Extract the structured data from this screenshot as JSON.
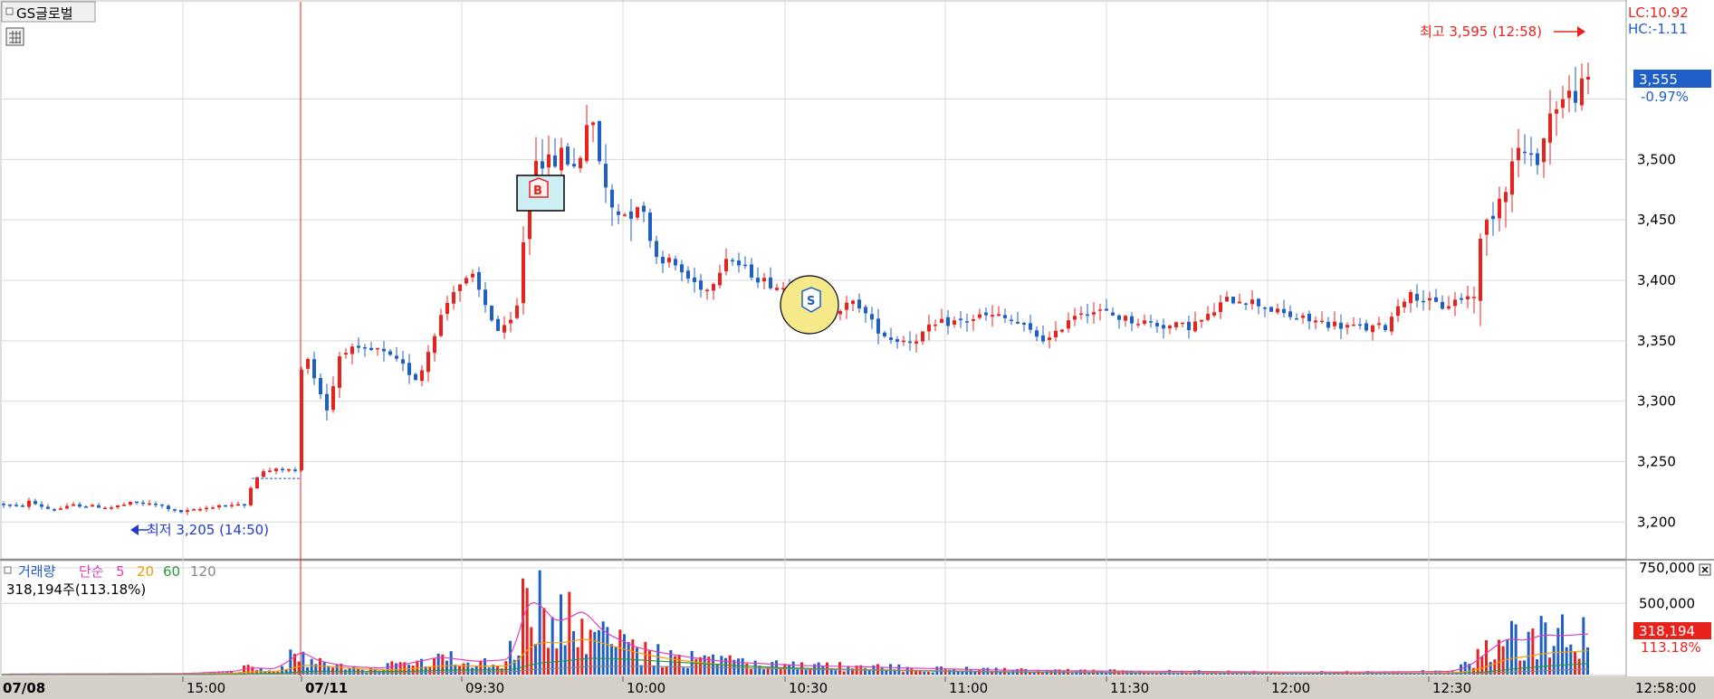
{
  "header": {
    "stock_tab": "GS글로벌",
    "lc_label": "LC:10.92",
    "hc_label": "HC:-1.11"
  },
  "price_panel": {
    "current_price": "3,555",
    "change_pct": "-0.97%",
    "high_annotation": "최고 3,595 (12:58)",
    "low_annotation": "최저 3,205 (14:50)",
    "buy_marker": "B",
    "sell_marker": "S"
  },
  "volume_panel": {
    "legend": {
      "volume": "거래량",
      "sma": "단순",
      "p5": "5",
      "p20": "20",
      "p60": "60",
      "p120": "120"
    },
    "summary": "318,194주(113.18%)",
    "current_volume": "318,194",
    "current_ratio": "113.18%"
  },
  "x_axis": {
    "date_prev": "07/08",
    "date_curr": "07/11",
    "current_time": "12:58:00"
  },
  "colors": {
    "up": "#e8231d",
    "down": "#1f5fc8",
    "grid": "#d9d9d9",
    "ma5": "#e040c0",
    "ma20": "#f0a000",
    "ma60": "#2a9a3a",
    "ma120": "#888888",
    "axis_bg": "#d4d0c8"
  },
  "chart_data": [
    {
      "type": "candlestick",
      "ylim": [
        3180,
        3620
      ],
      "y_ticks": [
        3200,
        3250,
        3300,
        3350,
        3400,
        3450,
        3500,
        3550
      ],
      "y_tick_labels": [
        "3,200",
        "3,250",
        "3,300",
        "3,350",
        "3,400",
        "3,450",
        "3,500",
        "3,550"
      ],
      "x_tick_labels": [
        "07/08",
        "15:00",
        "07/11",
        "09:30",
        "10:00",
        "10:30",
        "11:00",
        "11:30",
        "12:00",
        "12:30"
      ],
      "anchors": [
        [
          0,
          3215
        ],
        [
          20,
          3212
        ],
        [
          30,
          3217
        ],
        [
          40,
          3214
        ],
        [
          55,
          3210
        ],
        [
          70,
          3212
        ],
        [
          80,
          3214
        ],
        [
          100,
          3213
        ],
        [
          120,
          3212
        ],
        [
          145,
          3216
        ],
        [
          175,
          3214
        ],
        [
          195,
          3208
        ],
        [
          215,
          3210
        ],
        [
          240,
          3214
        ],
        [
          268,
          3214
        ],
        [
          278,
          3236
        ],
        [
          290,
          3242
        ],
        [
          310,
          3244
        ],
        [
          325,
          3242
        ],
        [
          333,
          3352
        ],
        [
          345,
          3320
        ],
        [
          360,
          3292
        ],
        [
          375,
          3345
        ],
        [
          395,
          3340
        ],
        [
          415,
          3342
        ],
        [
          440,
          3330
        ],
        [
          460,
          3318
        ],
        [
          480,
          3362
        ],
        [
          500,
          3395
        ],
        [
          520,
          3402
        ],
        [
          535,
          3378
        ],
        [
          550,
          3355
        ],
        [
          568,
          3370
        ],
        [
          578,
          3450
        ],
        [
          590,
          3505
        ],
        [
          605,
          3495
        ],
        [
          620,
          3505
        ],
        [
          635,
          3490
        ],
        [
          648,
          3540
        ],
        [
          660,
          3500
        ],
        [
          670,
          3462
        ],
        [
          690,
          3455
        ],
        [
          705,
          3465
        ],
        [
          722,
          3420
        ],
        [
          740,
          3415
        ],
        [
          760,
          3400
        ],
        [
          780,
          3392
        ],
        [
          800,
          3420
        ],
        [
          815,
          3412
        ],
        [
          835,
          3402
        ],
        [
          855,
          3395
        ],
        [
          875,
          3392
        ],
        [
          895,
          3385
        ],
        [
          910,
          3372
        ],
        [
          930,
          3378
        ],
        [
          945,
          3382
        ],
        [
          960,
          3365
        ],
        [
          980,
          3352
        ],
        [
          1005,
          3350
        ],
        [
          1025,
          3360
        ],
        [
          1040,
          3365
        ],
        [
          1060,
          3366
        ],
        [
          1080,
          3370
        ],
        [
          1100,
          3370
        ],
        [
          1120,
          3365
        ],
        [
          1140,
          3355
        ],
        [
          1160,
          3350
        ],
        [
          1175,
          3367
        ],
        [
          1190,
          3375
        ],
        [
          1215,
          3374
        ],
        [
          1240,
          3368
        ],
        [
          1265,
          3365
        ],
        [
          1290,
          3362
        ],
        [
          1310,
          3362
        ],
        [
          1330,
          3368
        ],
        [
          1350,
          3383
        ],
        [
          1370,
          3385
        ],
        [
          1390,
          3380
        ],
        [
          1410,
          3373
        ],
        [
          1435,
          3368
        ],
        [
          1460,
          3365
        ],
        [
          1485,
          3362
        ],
        [
          1510,
          3360
        ],
        [
          1530,
          3362
        ],
        [
          1545,
          3385
        ],
        [
          1560,
          3388
        ],
        [
          1575,
          3382
        ],
        [
          1592,
          3378
        ],
        [
          1610,
          3385
        ],
        [
          1625,
          3387
        ],
        [
          1635,
          3440
        ],
        [
          1648,
          3460
        ],
        [
          1660,
          3480
        ],
        [
          1675,
          3510
        ],
        [
          1690,
          3495
        ],
        [
          1700,
          3510
        ],
        [
          1713,
          3545
        ],
        [
          1726,
          3550
        ],
        [
          1738,
          3555
        ],
        [
          1748,
          3560
        ],
        [
          1755,
          3565
        ]
      ],
      "current": 3555,
      "high": {
        "value": 3595,
        "time": "12:58"
      },
      "low": {
        "value": 3205,
        "time": "14:50"
      }
    },
    {
      "type": "bar",
      "series_label": "거래량",
      "ylim": [
        0,
        800000
      ],
      "y_ticks": [
        500000,
        750000
      ],
      "y_tick_labels": [
        "500,000",
        "750,000"
      ],
      "current": 318194,
      "vol_anchors": [
        [
          0,
          5000
        ],
        [
          200,
          8000
        ],
        [
          260,
          30000
        ],
        [
          270,
          60000
        ],
        [
          300,
          40000
        ],
        [
          330,
          200000
        ],
        [
          345,
          100000
        ],
        [
          380,
          60000
        ],
        [
          420,
          50000
        ],
        [
          480,
          140000
        ],
        [
          520,
          100000
        ],
        [
          560,
          120000
        ],
        [
          580,
          680000
        ],
        [
          595,
          520000
        ],
        [
          610,
          380000
        ],
        [
          640,
          520000
        ],
        [
          660,
          320000
        ],
        [
          680,
          260000
        ],
        [
          700,
          200000
        ],
        [
          740,
          150000
        ],
        [
          780,
          110000
        ],
        [
          820,
          90000
        ],
        [
          880,
          70000
        ],
        [
          950,
          60000
        ],
        [
          1000,
          50000
        ],
        [
          1100,
          35000
        ],
        [
          1200,
          28000
        ],
        [
          1300,
          25000
        ],
        [
          1400,
          20000
        ],
        [
          1500,
          20000
        ],
        [
          1600,
          25000
        ],
        [
          1620,
          80000
        ],
        [
          1640,
          200000
        ],
        [
          1660,
          300000
        ],
        [
          1680,
          260000
        ],
        [
          1700,
          320000
        ],
        [
          1720,
          300000
        ],
        [
          1745,
          318194
        ]
      ]
    }
  ]
}
